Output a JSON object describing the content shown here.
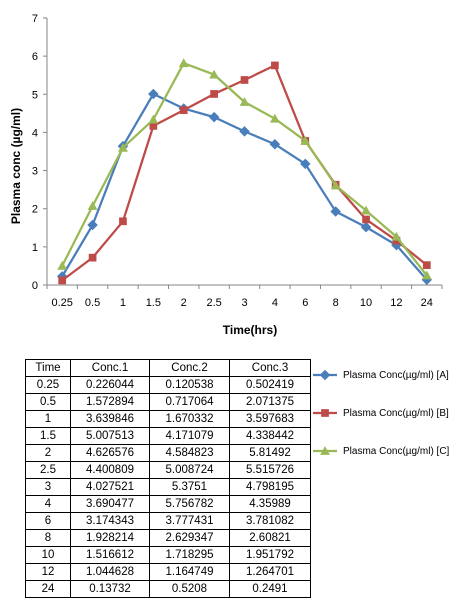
{
  "chart_data": {
    "type": "line",
    "ylabel": "Plasma conc (µg/ml)",
    "xlabel": "Time(hrs)",
    "categories": [
      "0.25",
      "0.5",
      "1",
      "1.5",
      "2",
      "2.5",
      "3",
      "4",
      "6",
      "8",
      "10",
      "12",
      "24"
    ],
    "ylim": [
      0,
      7
    ],
    "yticks": [
      0,
      1,
      2,
      3,
      4,
      5,
      6,
      7
    ],
    "grid": false,
    "legend_position": "right",
    "series": [
      {
        "name": "Plasma Conc(µg/ml) [A]",
        "color": "#4a7ebb",
        "marker": "diamond",
        "values": [
          0.226044,
          1.572894,
          3.639846,
          5.007513,
          4.626576,
          4.400809,
          4.027521,
          3.690477,
          3.174343,
          1.928214,
          1.516612,
          1.044628,
          0.13732
        ]
      },
      {
        "name": "Plasma Conc(µg/ml) [B]",
        "color": "#be4b48",
        "marker": "square",
        "values": [
          0.120538,
          0.717064,
          1.670332,
          4.171079,
          4.584823,
          5.008724,
          5.3751,
          5.756782,
          3.777431,
          2.629347,
          1.718295,
          1.164749,
          0.5208
        ]
      },
      {
        "name": "Plasma Conc(µg/ml) [C]",
        "color": "#98b954",
        "marker": "triangle",
        "values": [
          0.502419,
          2.071375,
          3.597683,
          4.338442,
          5.81492,
          5.515726,
          4.798195,
          4.35989,
          3.781082,
          2.60821,
          1.951792,
          1.264701,
          0.2491
        ]
      }
    ]
  },
  "table": {
    "headers": [
      "Time",
      "Conc.1",
      "Conc.2",
      "Conc.3"
    ],
    "rows": [
      [
        "0.25",
        "0.226044",
        "0.120538",
        "0.502419"
      ],
      [
        "0.5",
        "1.572894",
        "0.717064",
        "2.071375"
      ],
      [
        "1",
        "3.639846",
        "1.670332",
        "3.597683"
      ],
      [
        "1.5",
        "5.007513",
        "4.171079",
        "4.338442"
      ],
      [
        "2",
        "4.626576",
        "4.584823",
        "5.81492"
      ],
      [
        "2.5",
        "4.400809",
        "5.008724",
        "5.515726"
      ],
      [
        "3",
        "4.027521",
        "5.3751",
        "4.798195"
      ],
      [
        "4",
        "3.690477",
        "5.756782",
        "4.35989"
      ],
      [
        "6",
        "3.174343",
        "3.777431",
        "3.781082"
      ],
      [
        "8",
        "1.928214",
        "2.629347",
        "2.60821"
      ],
      [
        "10",
        "1.516612",
        "1.718295",
        "1.951792"
      ],
      [
        "12",
        "1.044628",
        "1.164749",
        "1.264701"
      ],
      [
        "24",
        "0.13732",
        "0.5208",
        "0.2491"
      ]
    ]
  }
}
